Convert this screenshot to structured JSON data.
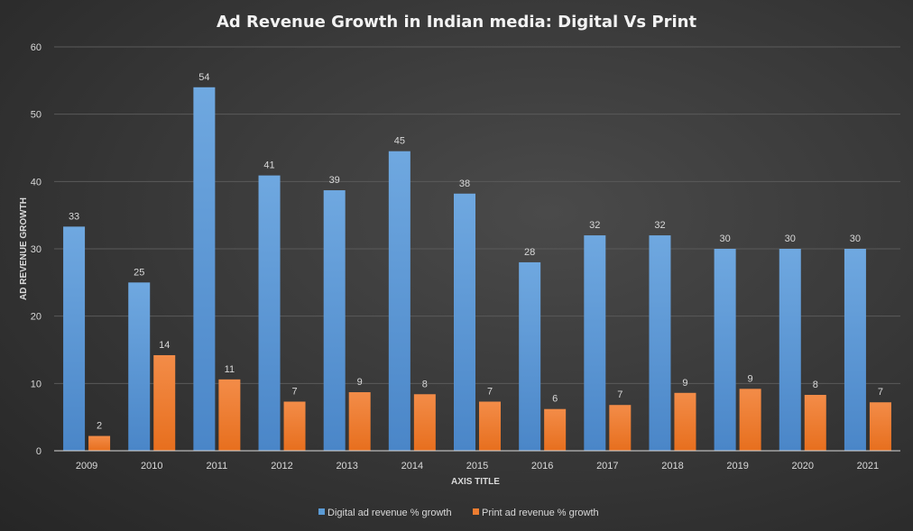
{
  "chart_data": {
    "type": "bar",
    "title": "Ad Revenue Growth  in Indian  media: Digital  Vs Print",
    "xlabel": "AXIS TITLE",
    "ylabel": "AD REVENUE GROWTH",
    "ylim": [
      0,
      60
    ],
    "yticks": [
      0,
      10,
      20,
      30,
      40,
      50,
      60
    ],
    "grid": true,
    "legend": "bottom",
    "categories": [
      "2009",
      "2010",
      "2011",
      "2012",
      "2013",
      "2014",
      "2015",
      "2016",
      "2017",
      "2018",
      "2019",
      "2020",
      "2021"
    ],
    "series": [
      {
        "name": "Digital ad revenue % growth",
        "color": "#5b9bd5",
        "values": [
          33.3,
          25,
          54,
          40.9,
          38.7,
          44.5,
          38.2,
          28,
          32,
          32,
          30,
          30,
          30
        ],
        "labels": [
          "33",
          "25",
          "54",
          "41",
          "39",
          "45",
          "38",
          "28",
          "32",
          "32",
          "30",
          "30",
          "30"
        ]
      },
      {
        "name": "Print ad revenue % growth",
        "color": "#ed7d31",
        "values": [
          2.2,
          14.2,
          10.6,
          7.3,
          8.7,
          8.4,
          7.3,
          6.2,
          6.8,
          8.6,
          9.2,
          8.3,
          7.2
        ],
        "labels": [
          "2",
          "14",
          "11",
          "7",
          "9",
          "8",
          "7",
          "6",
          "7",
          "9",
          "9",
          "8",
          "7"
        ]
      }
    ]
  }
}
